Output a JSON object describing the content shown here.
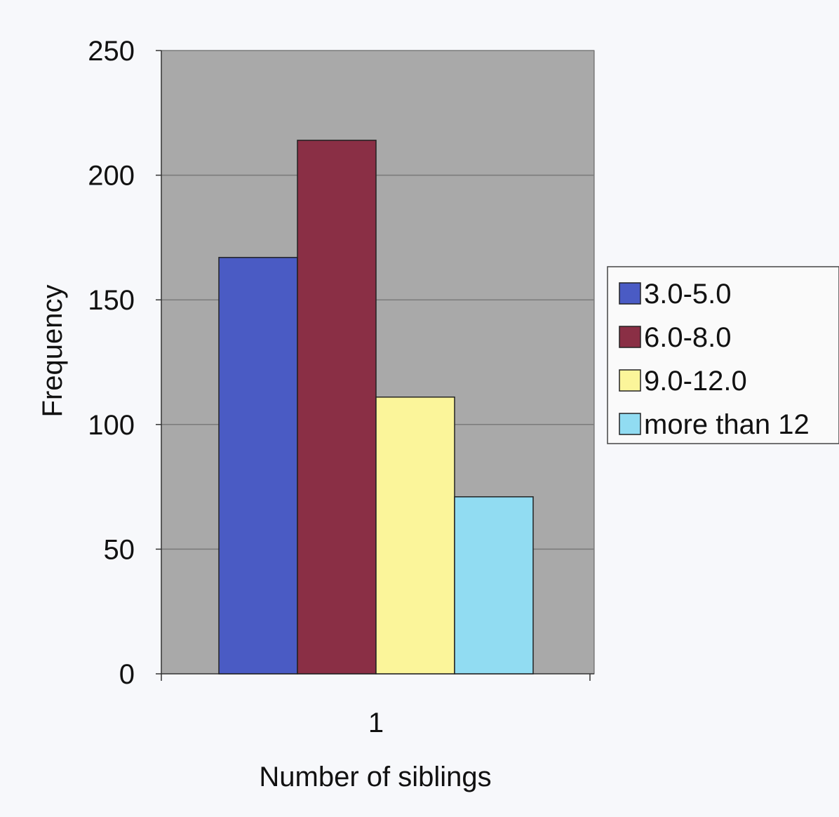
{
  "chart_data": {
    "type": "bar",
    "title": "",
    "categories": [
      "1"
    ],
    "series": [
      {
        "name": "3.0-5.0",
        "values": [
          167
        ],
        "color": "#4a5bc4"
      },
      {
        "name": "6.0-8.0",
        "values": [
          214
        ],
        "color": "#8a2f45"
      },
      {
        "name": "9.0-12.0",
        "values": [
          111
        ],
        "color": "#fbf59a"
      },
      {
        "name": "more than 12",
        "values": [
          71
        ],
        "color": "#91dcf2"
      }
    ],
    "xlabel": "Number of siblings",
    "ylabel": "Frequency",
    "ylim": [
      0,
      250
    ],
    "yticks": [
      "0",
      "50",
      "100",
      "150",
      "200",
      "250"
    ],
    "grid": true,
    "plot_background": "#a9a9a9",
    "legend_position": "right"
  }
}
